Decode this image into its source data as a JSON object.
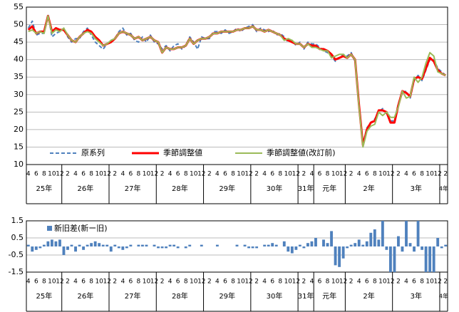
{
  "chart_data": [
    {
      "type": "line",
      "categories": [
        "4",
        null,
        "6",
        null,
        "8",
        null,
        "10",
        null,
        "12",
        null,
        "2",
        null,
        "4",
        null,
        "6",
        null,
        "8",
        null,
        "10",
        null,
        "12",
        null,
        "2",
        null,
        "4",
        null,
        "6",
        null,
        "8",
        null,
        "10",
        null,
        "12",
        null,
        "2",
        null,
        "4",
        null,
        "6",
        null,
        "8",
        null,
        "10",
        null,
        "12",
        null,
        "2",
        null,
        "4",
        null,
        "6",
        null,
        "8",
        null,
        "10",
        null,
        "12",
        null,
        "2",
        null,
        "4",
        null,
        "6",
        null,
        "8",
        null,
        "10",
        null,
        "12",
        null,
        "2",
        null,
        "4",
        null,
        "6",
        null,
        "8",
        null,
        "10",
        null,
        "12",
        null,
        "2",
        null,
        "4",
        null,
        "6",
        null,
        "8",
        null,
        "10",
        null,
        "12",
        null,
        "2",
        null,
        "4",
        null,
        "6",
        null,
        "8",
        null,
        "10",
        null,
        "12",
        null,
        "2"
      ],
      "years": [
        "25年",
        "25年",
        "25年",
        "25年",
        "25年",
        "25年",
        "25年",
        "25年",
        "25年",
        "26年",
        "26年",
        "26年",
        "26年",
        "26年",
        "26年",
        "26年",
        "26年",
        "26年",
        "26年",
        "26年",
        "26年",
        "27年",
        "27年",
        "27年",
        "27年",
        "27年",
        "27年",
        "27年",
        "27年",
        "27年",
        "27年",
        "27年",
        "27年",
        "28年",
        "28年",
        "28年",
        "28年",
        "28年",
        "28年",
        "28年",
        "28年",
        "28年",
        "28年",
        "28年",
        "28年",
        "29年",
        "29年",
        "29年",
        "29年",
        "29年",
        "29年",
        "29年",
        "29年",
        "29年",
        "29年",
        "29年",
        "29年",
        "30年",
        "30年",
        "30年",
        "30年",
        "30年",
        "30年",
        "30年",
        "30年",
        "30年",
        "30年",
        "30年",
        "30年",
        "31年",
        "31年",
        "31年",
        "31年",
        "元年",
        "元年",
        "元年",
        "元年",
        "元年",
        "元年",
        "元年",
        "元年",
        "2年",
        "2年",
        "2年",
        "2年",
        "2年",
        "2年",
        "2年",
        "2年",
        "2年",
        "2年",
        "2年",
        "2年",
        "3年",
        "3年",
        "3年",
        "3年",
        "3年",
        "3年",
        "3年",
        "3年",
        "3年",
        "3年",
        "3年",
        "3年",
        "4年",
        "4年"
      ],
      "ylim": [
        10,
        55
      ],
      "yticks": [
        10,
        15,
        20,
        25,
        30,
        35,
        40,
        45,
        50,
        55
      ],
      "grid": true,
      "legend": "bottom-left",
      "series": [
        {
          "name": "原系列",
          "color": "#4f81bd",
          "dash": true,
          "values": [
            49,
            51,
            47,
            47.5,
            47.5,
            53,
            46.5,
            47.5,
            48,
            49,
            46.5,
            45,
            46,
            46,
            48,
            49,
            47,
            45,
            44,
            43,
            44.5,
            45.5,
            46,
            48,
            49,
            47,
            47.5,
            45.5,
            45,
            46.5,
            45,
            47,
            45,
            44.5,
            43,
            44,
            42.5,
            44,
            44.5,
            43,
            44,
            46.5,
            45,
            43,
            46.5,
            46,
            46,
            48,
            48,
            47.5,
            48.5,
            47.5,
            48,
            49,
            48,
            49,
            49.5,
            50,
            48,
            49,
            48.5,
            48,
            48.5,
            47,
            47.5,
            46.5,
            45,
            45.5,
            44,
            45,
            43,
            45,
            44.5,
            44.5,
            43.5,
            42.5,
            42,
            41,
            39.5,
            40.5,
            41.5,
            41,
            42,
            39.5,
            27.5,
            16,
            20.5,
            22,
            23,
            25,
            26,
            24.5,
            22.5,
            22.5,
            27.5,
            30.5,
            31,
            29,
            34,
            35.5,
            34,
            37,
            40,
            40,
            37.5,
            36.5,
            35.5
          ]
        },
        {
          "name": "季節調整値",
          "color": "#ff0000",
          "width": 3,
          "values": [
            48.5,
            49.5,
            47.5,
            48,
            48,
            52.5,
            48,
            49,
            48.5,
            48.5,
            47,
            45.5,
            45,
            46.5,
            47.5,
            48.5,
            48,
            46.5,
            45.5,
            44,
            44.5,
            45,
            46,
            47.5,
            48,
            47.5,
            47,
            46,
            46.5,
            45.5,
            46,
            46.5,
            45.5,
            45,
            42,
            43.5,
            43,
            43,
            43.5,
            43.5,
            44,
            46,
            44.5,
            45.5,
            46,
            46,
            46.5,
            47.5,
            47.5,
            48,
            48,
            48,
            48,
            48.5,
            48.5,
            49,
            49,
            49.5,
            48.5,
            48.5,
            48,
            48.5,
            48,
            47.5,
            47,
            46,
            45.5,
            45,
            44.5,
            44.5,
            43.5,
            44.5,
            44,
            44,
            43,
            43,
            42.5,
            41.5,
            40,
            40.5,
            41,
            40.5,
            41.5,
            40,
            27,
            15.5,
            20,
            22,
            22.5,
            25.5,
            25.5,
            25,
            22,
            22,
            27,
            31,
            30.5,
            29.5,
            34.5,
            35,
            34.5,
            37.5,
            40.5,
            39.5,
            37,
            36,
            35.5
          ]
        },
        {
          "name": "季節調整値(改訂前)",
          "color": "#9bbb59",
          "width": 2,
          "values": [
            48,
            48.5,
            47.5,
            48,
            47.5,
            52.5,
            47.5,
            48.5,
            48,
            49,
            47,
            45.5,
            45,
            46.5,
            47.5,
            48,
            47.5,
            46,
            45,
            44,
            44.5,
            45.5,
            46,
            47.5,
            48,
            47.5,
            47,
            46,
            46.5,
            45.5,
            46,
            46.5,
            45.5,
            45,
            42,
            43.5,
            43,
            43,
            43.5,
            43.5,
            44,
            46,
            44.5,
            45.5,
            46,
            46,
            46.5,
            47.5,
            47.5,
            48,
            48,
            48,
            48,
            48.5,
            48.5,
            49,
            49,
            49.5,
            48.5,
            48.5,
            48,
            48.5,
            48,
            47.5,
            47,
            45.5,
            46,
            45.5,
            44.5,
            44.5,
            43.5,
            44.5,
            43.5,
            43.5,
            43,
            42.5,
            42.5,
            40.5,
            41,
            41.5,
            41.5,
            40.5,
            41.5,
            40,
            26.5,
            15,
            19.5,
            21,
            21.5,
            25,
            24,
            25,
            23.5,
            23.5,
            26.5,
            31,
            29,
            29.5,
            35,
            33.5,
            35,
            39,
            42,
            41,
            36.5,
            36,
            35.5
          ]
        }
      ]
    },
    {
      "type": "bar",
      "categories": [
        "4",
        null,
        "6",
        null,
        "8",
        null,
        "10",
        null,
        "12",
        null,
        "2",
        null,
        "4",
        null,
        "6",
        null,
        "8",
        null,
        "10",
        null,
        "12",
        null,
        "2",
        null,
        "4",
        null,
        "6",
        null,
        "8",
        null,
        "10",
        null,
        "12",
        null,
        "2",
        null,
        "4",
        null,
        "6",
        null,
        "8",
        null,
        "10",
        null,
        "12",
        null,
        "2",
        null,
        "4",
        null,
        "6",
        null,
        "8",
        null,
        "10",
        null,
        "12",
        null,
        "2",
        null,
        "4",
        null,
        "6",
        null,
        "8",
        null,
        "10",
        null,
        "12",
        null,
        "2",
        null,
        "4",
        null,
        "6",
        null,
        "8",
        null,
        "10",
        null,
        "12",
        null,
        "2",
        null,
        "4",
        null,
        "6",
        null,
        "8",
        null,
        "10",
        null,
        "12",
        null,
        "2",
        null,
        "4",
        null,
        "6",
        null,
        "8",
        null,
        "10",
        null,
        "12",
        null,
        "2"
      ],
      "years": [
        "25年",
        "25年",
        "25年",
        "25年",
        "25年",
        "25年",
        "25年",
        "25年",
        "25年",
        "26年",
        "26年",
        "26年",
        "26年",
        "26年",
        "26年",
        "26年",
        "26年",
        "26年",
        "26年",
        "26年",
        "26年",
        "27年",
        "27年",
        "27年",
        "27年",
        "27年",
        "27年",
        "27年",
        "27年",
        "27年",
        "27年",
        "27年",
        "27年",
        "28年",
        "28年",
        "28年",
        "28年",
        "28年",
        "28年",
        "28年",
        "28年",
        "28年",
        "28年",
        "28年",
        "28年",
        "29年",
        "29年",
        "29年",
        "29年",
        "29年",
        "29年",
        "29年",
        "29年",
        "29年",
        "29年",
        "29年",
        "29年",
        "30年",
        "30年",
        "30年",
        "30年",
        "30年",
        "30年",
        "30年",
        "30年",
        "30年",
        "30年",
        "30年",
        "30年",
        "31年",
        "31年",
        "31年",
        "31年",
        "元年",
        "元年",
        "元年",
        "元年",
        "元年",
        "元年",
        "元年",
        "元年",
        "2年",
        "2年",
        "2年",
        "2年",
        "2年",
        "2年",
        "2年",
        "2年",
        "2年",
        "2年",
        "2年",
        "2年",
        "3年",
        "3年",
        "3年",
        "3年",
        "3年",
        "3年",
        "3年",
        "3年",
        "3年",
        "3年",
        "3年",
        "3年",
        "4年",
        "4年"
      ],
      "ylim": [
        -1.5,
        1.5
      ],
      "yticks": [
        -1.5,
        -0.5,
        0.5,
        1.5
      ],
      "grid": true,
      "legend": "top-left",
      "series": [
        {
          "name": "新旧差(新ー旧)",
          "color": "#4f81bd",
          "values": [
            0.1,
            -0.3,
            -0.2,
            -0.1,
            0.1,
            0.3,
            0.4,
            0.3,
            0.4,
            -0.5,
            -0.2,
            0.1,
            -0.3,
            0.1,
            -0.2,
            0.1,
            0.2,
            0.3,
            0.2,
            0.1,
            0.1,
            -0.3,
            0.1,
            -0.1,
            -0.2,
            -0.1,
            0.1,
            0,
            0.1,
            0.1,
            0.1,
            0,
            0.1,
            -0.1,
            -0.1,
            -0.1,
            0.1,
            0.1,
            -0.1,
            0,
            -0.1,
            0.1,
            0,
            0,
            0.1,
            0,
            0,
            0,
            0.1,
            0,
            0,
            0,
            0,
            0.1,
            0,
            0.1,
            -0.1,
            -0.1,
            -0.1,
            0,
            0.1,
            0.1,
            0.2,
            0.1,
            0,
            0.3,
            -0.3,
            -0.4,
            -0.2,
            0.1,
            -0.1,
            0.2,
            0.3,
            0.5,
            0,
            0.4,
            0.2,
            0.9,
            -1.1,
            -1.2,
            -0.7,
            -0.1,
            0.1,
            0.2,
            0.4,
            0.1,
            0.3,
            0.8,
            1,
            0.4,
            1.5,
            -0.2,
            -1.5,
            -1.5,
            0.6,
            -0.3,
            1.5,
            0.2,
            -0.3,
            1.5,
            -0.2,
            -1.5,
            -1.5,
            -1.5,
            0.5,
            -0.1,
            0.1
          ]
        }
      ]
    }
  ]
}
